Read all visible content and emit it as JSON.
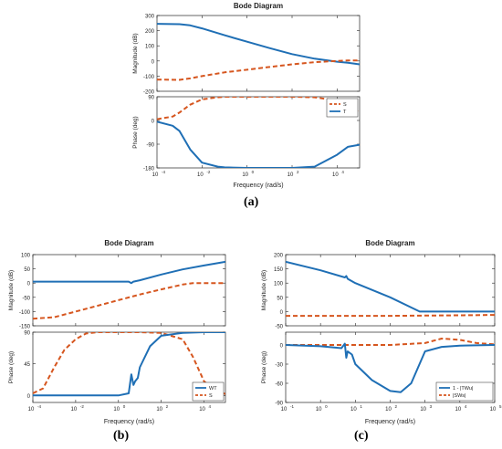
{
  "colors": {
    "blue": "#1f6fb5",
    "orange": "#d6561f",
    "axis": "#262626",
    "grid": "#ffffff"
  },
  "captions": [
    "(a)",
    "(b)",
    "(c)"
  ],
  "chart_data": [
    {
      "type": "line",
      "title": "Bode Diagram",
      "xlabel": "Frequency  (rad/s)",
      "xscale": "log",
      "xlim": [
        0.0001,
        100000
      ],
      "xticks": [
        0.0001,
        0.01,
        1,
        100,
        10000
      ],
      "xtick_labels": [
        "10",
        "10",
        "10",
        "10",
        "10"
      ],
      "xtick_exps": [
        "-4",
        "-2",
        "0",
        "2",
        "4"
      ],
      "panels": [
        {
          "ylabel": "Magnitude (dB)",
          "ylim": [
            -200,
            300
          ],
          "yticks": [
            -200,
            -100,
            0,
            100,
            200,
            300
          ],
          "ytick_labels": [
            "-200",
            "-100",
            "0",
            "100",
            "200",
            "300"
          ],
          "series": [
            {
              "key": "T",
              "color": "blue",
              "dashed": false,
              "x": [
                0.0001,
                0.001,
                0.003,
                0.01,
                0.1,
                1,
                10,
                100,
                1000,
                10000,
                30000,
                100000
              ],
              "y": [
                245,
                243,
                235,
                215,
                170,
                127,
                85,
                45,
                15,
                -5,
                -12,
                -22
              ]
            },
            {
              "key": "S",
              "color": "orange",
              "dashed": true,
              "x": [
                0.0001,
                0.001,
                0.003,
                0.01,
                0.1,
                1,
                10,
                100,
                1000,
                10000,
                30000,
                100000
              ],
              "y": [
                -123,
                -125,
                -115,
                -100,
                -75,
                -58,
                -40,
                -22,
                -8,
                0,
                3,
                3
              ]
            }
          ]
        },
        {
          "ylabel": "Phase (deg)",
          "ylim": [
            -180,
            90
          ],
          "yticks": [
            -180,
            -90,
            0,
            90
          ],
          "ytick_labels": [
            "-180",
            "-90",
            "0",
            "90"
          ],
          "legend": [
            "S",
            "T"
          ],
          "legend_position": "top-right",
          "series": [
            {
              "key": "S",
              "color": "orange",
              "dashed": true,
              "x": [
                0.0001,
                0.0005,
                0.001,
                0.003,
                0.01,
                0.05,
                0.1,
                1,
                10,
                100,
                1000,
                10000,
                30000,
                100000
              ],
              "y": [
                5,
                15,
                30,
                60,
                80,
                88,
                90,
                90,
                90,
                90,
                88,
                75,
                55,
                30
              ]
            },
            {
              "key": "T",
              "color": "blue",
              "dashed": false,
              "x": [
                0.0001,
                0.0005,
                0.001,
                0.003,
                0.01,
                0.05,
                0.1,
                1,
                10,
                100,
                1000,
                10000,
                30000,
                100000
              ],
              "y": [
                -5,
                -20,
                -40,
                -110,
                -160,
                -175,
                -178,
                -180,
                -180,
                -180,
                -175,
                -130,
                -100,
                -92
              ]
            }
          ]
        }
      ]
    },
    {
      "type": "line",
      "title": "Bode Diagram",
      "xlabel": "Frequency  (rad/s)",
      "xscale": "log",
      "xlim": [
        0.0001,
        100000
      ],
      "xticks": [
        0.0001,
        0.01,
        1,
        100,
        10000
      ],
      "xtick_labels": [
        "10",
        "10",
        "10",
        "10",
        "10"
      ],
      "xtick_exps": [
        "-4",
        "-2",
        "0",
        "2",
        "4"
      ],
      "panels": [
        {
          "ylabel": "Magnitude (dB)",
          "ylim": [
            -150,
            100
          ],
          "yticks": [
            -150,
            -100,
            -50,
            0,
            50,
            100
          ],
          "ytick_labels": [
            "-150",
            "-100",
            "-50",
            "0",
            "50",
            "100"
          ],
          "series": [
            {
              "key": "WT",
              "color": "blue",
              "dashed": false,
              "x": [
                0.0001,
                0.001,
                0.01,
                0.1,
                1,
                3,
                4,
                5,
                10,
                100,
                1000,
                10000,
                100000
              ],
              "y": [
                5,
                5,
                5,
                5,
                5,
                5,
                0,
                5,
                10,
                30,
                48,
                62,
                75
              ]
            },
            {
              "key": "S",
              "color": "orange",
              "dashed": true,
              "x": [
                0.0001,
                0.001,
                0.01,
                0.1,
                1,
                10,
                100,
                1000,
                3000,
                10000,
                100000
              ],
              "y": [
                -125,
                -120,
                -100,
                -80,
                -60,
                -40,
                -22,
                -5,
                0,
                0,
                0
              ]
            }
          ]
        },
        {
          "ylabel": "Phase (deg)",
          "ylim": [
            -10,
            90
          ],
          "yticks": [
            0,
            45,
            90
          ],
          "ytick_labels": [
            "0",
            "45",
            "90"
          ],
          "legend": [
            "WT",
            "S"
          ],
          "legend_position": "bottom-right",
          "series": [
            {
              "key": "S",
              "color": "orange",
              "dashed": true,
              "x": [
                0.0001,
                0.0003,
                0.001,
                0.003,
                0.01,
                0.03,
                0.1,
                1,
                10,
                100,
                1000,
                3000,
                10000,
                30000,
                100000
              ],
              "y": [
                3,
                10,
                40,
                65,
                80,
                88,
                90,
                90,
                90,
                89,
                80,
                55,
                20,
                8,
                2
              ]
            },
            {
              "key": "WT",
              "color": "blue",
              "dashed": false,
              "x": [
                0.0001,
                0.001,
                0.01,
                0.1,
                1,
                3,
                4,
                5,
                6,
                8,
                10,
                30,
                100,
                1000,
                10000,
                100000
              ],
              "y": [
                0,
                0,
                0,
                0,
                0,
                3,
                30,
                15,
                20,
                25,
                40,
                70,
                85,
                89,
                90,
                90
              ]
            }
          ]
        }
      ]
    },
    {
      "type": "line",
      "title": "Bode Diagram",
      "xlabel": "Frequency  (rad/s)",
      "xscale": "log",
      "xlim": [
        0.1,
        100000
      ],
      "xticks": [
        0.1,
        1,
        10,
        100,
        1000,
        10000,
        100000
      ],
      "xtick_labels": [
        "10",
        "10",
        "10",
        "10",
        "10",
        "10",
        "10"
      ],
      "xtick_exps": [
        "-1",
        "0",
        "1",
        "2",
        "3",
        "4",
        "5"
      ],
      "panels": [
        {
          "ylabel": "Magnitude (dB)",
          "ylim": [
            -50,
            200
          ],
          "yticks": [
            -50,
            0,
            50,
            100,
            150,
            200
          ],
          "ytick_labels": [
            "-50",
            "0",
            "50",
            "100",
            "150",
            "200"
          ],
          "series": [
            {
              "key": "TW",
              "color": "blue",
              "dashed": false,
              "x": [
                0.1,
                1,
                5,
                5.5,
                6,
                10,
                100,
                700,
                1000,
                10000,
                100000
              ],
              "y": [
                175,
                145,
                120,
                125,
                115,
                100,
                50,
                0,
                0,
                0,
                0
              ]
            },
            {
              "key": "SW",
              "color": "orange",
              "dashed": true,
              "x": [
                0.1,
                1,
                10,
                100,
                1000,
                10000,
                100000
              ],
              "y": [
                -15,
                -15,
                -15,
                -15,
                -14,
                -13,
                -12
              ]
            }
          ]
        },
        {
          "ylabel": "Phase (deg)",
          "ylim": [
            -90,
            20
          ],
          "yticks": [
            -90,
            -60,
            -30,
            0
          ],
          "ytick_labels": [
            "-90",
            "-60",
            "-30",
            "0"
          ],
          "legend": [
            "1 - |TWu|",
            "|SWs|"
          ],
          "legend_position": "bottom-right",
          "series": [
            {
              "key": "SW",
              "color": "orange",
              "dashed": true,
              "x": [
                0.1,
                1,
                10,
                100,
                1000,
                3000,
                10000,
                30000,
                100000
              ],
              "y": [
                0,
                0,
                0,
                0,
                3,
                10,
                8,
                3,
                1
              ]
            },
            {
              "key": "TW",
              "color": "blue",
              "dashed": false,
              "x": [
                0.1,
                1,
                4,
                5,
                5.5,
                6,
                8,
                10,
                30,
                100,
                200,
                400,
                1000,
                3000,
                10000,
                100000
              ],
              "y": [
                0,
                -2,
                -5,
                2,
                -20,
                -10,
                -15,
                -30,
                -55,
                -72,
                -74,
                -60,
                -10,
                -3,
                -1,
                0
              ]
            }
          ]
        }
      ]
    }
  ]
}
